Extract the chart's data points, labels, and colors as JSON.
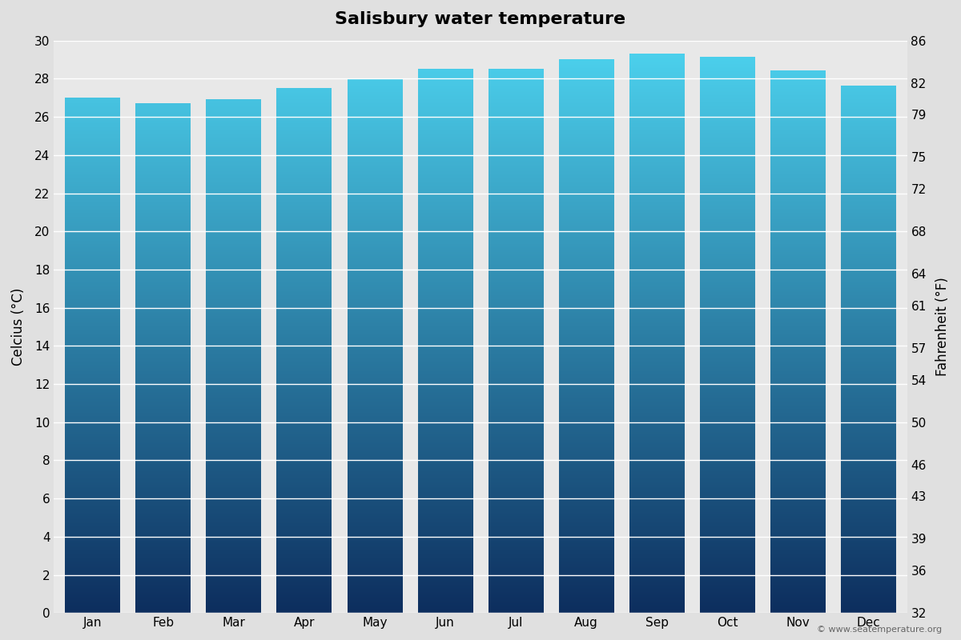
{
  "title": "Salisbury water temperature",
  "months": [
    "Jan",
    "Feb",
    "Mar",
    "Apr",
    "May",
    "Jun",
    "Jul",
    "Aug",
    "Sep",
    "Oct",
    "Nov",
    "Dec"
  ],
  "temps_c": [
    27.0,
    26.7,
    26.9,
    27.5,
    28.0,
    28.5,
    28.5,
    29.0,
    29.3,
    29.1,
    28.4,
    27.6
  ],
  "ylabel_left": "Celcius (°C)",
  "ylabel_right": "Fahrenheit (°F)",
  "ylim_c": [
    0,
    30
  ],
  "yticks_c": [
    0,
    2,
    4,
    6,
    8,
    10,
    12,
    14,
    16,
    18,
    20,
    22,
    24,
    26,
    28,
    30
  ],
  "yticks_f": [
    32,
    36,
    39,
    43,
    46,
    50,
    54,
    57,
    61,
    64,
    68,
    72,
    75,
    79,
    82,
    86
  ],
  "bar_top_color": "#4dd4f0",
  "bar_bottom_color": "#0d2e5e",
  "background_color": "#e0e0e0",
  "plot_bg_color": "#e8e8e8",
  "grid_color": "#ffffff",
  "title_fontsize": 16,
  "axis_label_fontsize": 12,
  "tick_fontsize": 11,
  "watermark": "© www.seatemperature.org",
  "bar_width": 0.78
}
